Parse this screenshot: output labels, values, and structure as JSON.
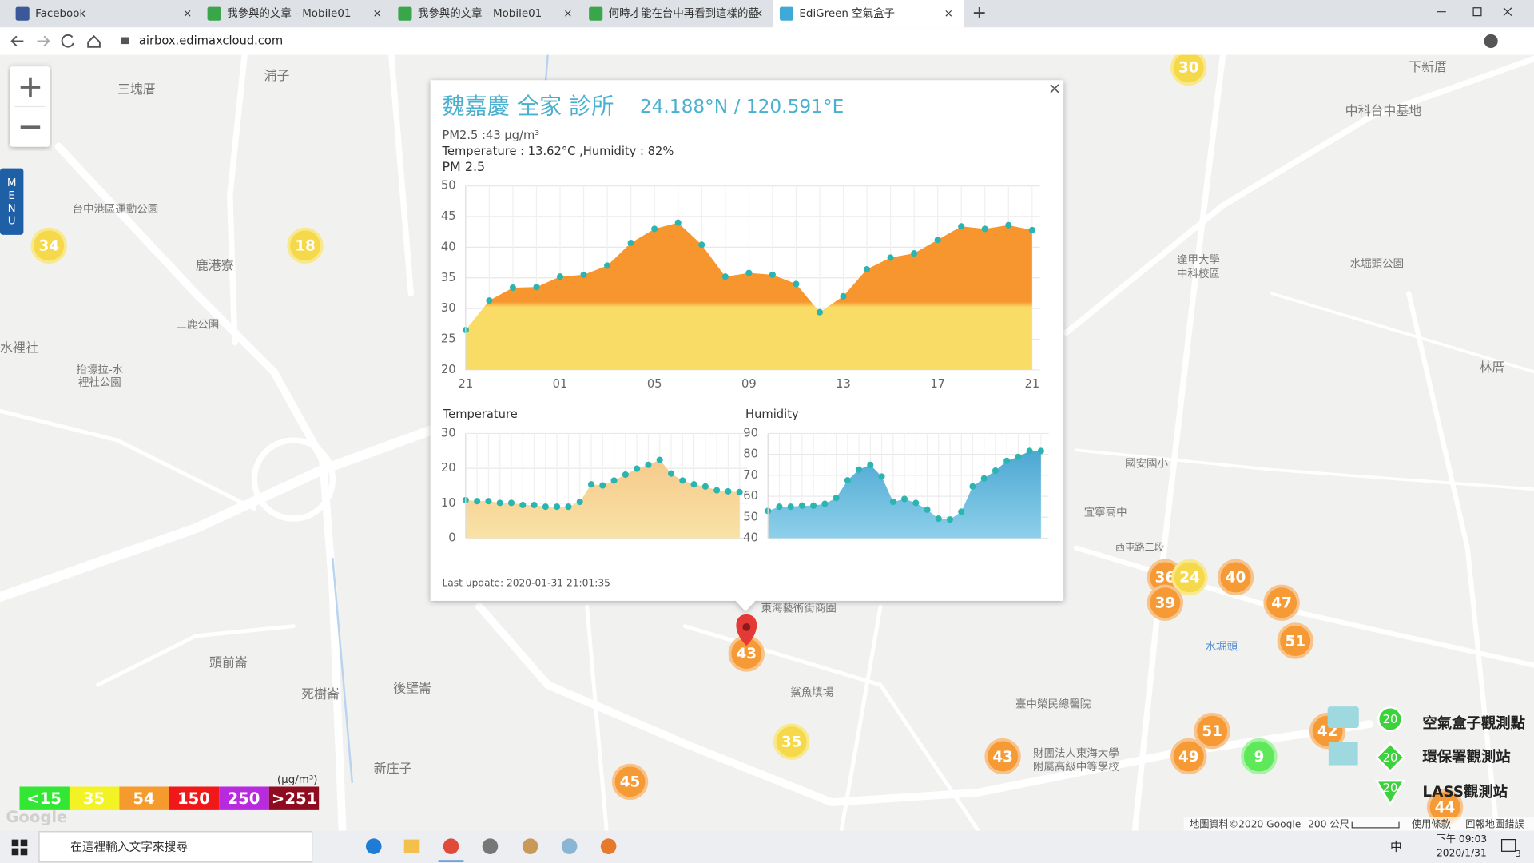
{
  "browser": {
    "tabs": [
      "Facebook",
      "我參與的文章 - Mobile01",
      "我參與的文章 - Mobile01",
      "何時才能在台中再看到這樣的藍",
      "EdiGreen 空氣盒子"
    ],
    "address": "airbox.edimaxcloud.com"
  },
  "map": {
    "menu": [
      "M",
      "E",
      "N",
      "U"
    ],
    "labels": [
      "三塊厝",
      "浦子",
      "中科台中基地",
      "下新厝",
      "台中港區運動公園",
      "鹿港寮",
      "三鹿公園",
      "水裡社",
      "抬壕拉-水",
      "裡社公園",
      "水堀頭公園",
      "林厝",
      "逢甲大學",
      "中科校區",
      "國安國小",
      "宜寧高中",
      "東海藝術街商圈",
      "鯊魚填場",
      "頭前崙",
      "死樹崙",
      "後壁崙",
      "新庄子",
      "水堀頭",
      "臺中榮民總醫院",
      "財團法人東海大學",
      "附屬高級中等學校",
      "西屯路二段"
    ],
    "markers": [
      "30",
      "34",
      "18",
      "36",
      "24",
      "40",
      "39",
      "47",
      "51",
      "43",
      "35",
      "43",
      "51",
      "49",
      "9",
      "42",
      "45",
      "44"
    ],
    "station_legend": [
      {
        "marker": "20",
        "label": "空氣盒子觀測點"
      },
      {
        "marker": "20",
        "label": "環保署觀測站"
      },
      {
        "marker": "20",
        "label": "LASS觀測站"
      }
    ],
    "scale": {
      "unit": "(μg/m³)",
      "levels": [
        "<15",
        "35",
        "54",
        "150",
        "250",
        ">251"
      ]
    },
    "footer": [
      "地圖資料©2020 Google",
      "200 公尺",
      "使用條款",
      "回報地圖錯誤"
    ],
    "google": "Google"
  },
  "popup": {
    "close": "×",
    "title": "魏嘉慶 全家 診所",
    "coords": "24.188°N / 120.591°E",
    "pm_line": "PM2.5 :43 μg/m³",
    "weather_line": "Temperature : 13.62°C ,Humidity : 82%",
    "last_update": "Last update: 2020-01-31 21:01:35",
    "charts": [
      {
        "type": "area",
        "title": "PM 2.5",
        "categories": [
          "21",
          null,
          null,
          null,
          "01",
          null,
          null,
          null,
          "05",
          null,
          null,
          null,
          "09",
          null,
          null,
          null,
          "13",
          null,
          null,
          null,
          "17",
          null,
          null,
          null,
          "21"
        ],
        "values": [
          26.5,
          31.3,
          33.4,
          33.5,
          35.2,
          35.5,
          37,
          40.7,
          43,
          44,
          40.4,
          35.2,
          35.8,
          35.5,
          34,
          29.4,
          32,
          36.4,
          38.3,
          39,
          41.2,
          43.4,
          43,
          43.6,
          42.8
        ],
        "ylim": [
          20,
          50
        ],
        "yticks": [
          20,
          25,
          30,
          35,
          40,
          45,
          50
        ],
        "colors": [
          "#f7952f",
          "#f9dc66"
        ],
        "point_color": "#2bb5b1"
      },
      {
        "type": "area",
        "title": "Temperature",
        "values": [
          10.9,
          10.6,
          10.6,
          10.1,
          10.1,
          9.5,
          9.5,
          9,
          9,
          9,
          10.4,
          15.4,
          15.1,
          16.5,
          18.2,
          19.9,
          21,
          22.4,
          18.5,
          16.5,
          15.4,
          14.8,
          13.7,
          13.4,
          13.2
        ],
        "ylim": [
          0,
          30
        ],
        "yticks": [
          0,
          10,
          20,
          30
        ],
        "colors": [
          "#f5c98a",
          "#f9e2a6"
        ],
        "point_color": "#2bb5b1"
      },
      {
        "type": "area",
        "title": "Humidity",
        "values": [
          53,
          55,
          55,
          55.5,
          55.5,
          56.4,
          59.2,
          67.6,
          72.7,
          75,
          69.4,
          57.3,
          58.7,
          56.8,
          53.6,
          49.3,
          48.9,
          52.6,
          64.7,
          68.5,
          72.2,
          76.9,
          78.8,
          81.6,
          81.6
        ],
        "ylim": [
          40,
          90
        ],
        "yticks": [
          40,
          50,
          60,
          70,
          80,
          90
        ],
        "colors": [
          "#4fa9d4",
          "#8ed0ea"
        ],
        "point_color": "#2bb5b1"
      }
    ]
  },
  "taskbar": {
    "search": "在這裡輸入文字來搜尋",
    "ime": "中",
    "time": "下午 09:03",
    "date": "2020/1/31",
    "badge": "3"
  }
}
